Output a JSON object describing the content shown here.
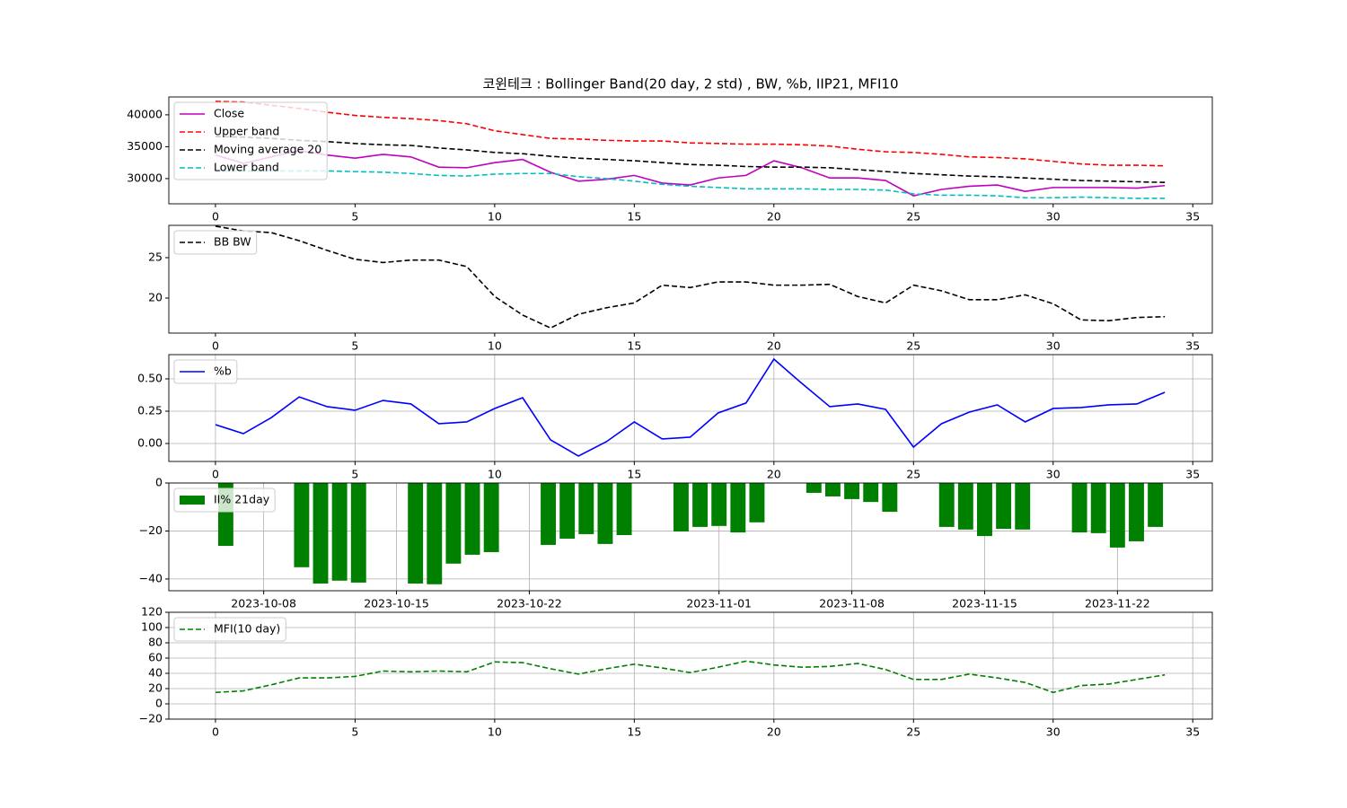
{
  "chart_data": [
    {
      "type": "line",
      "title": "코윈테크 : Bollinger Band(20 day, 2 std) , BW, %b, IIP21, MFI10",
      "x": [
        0,
        1,
        2,
        3,
        4,
        5,
        6,
        7,
        8,
        9,
        10,
        11,
        12,
        13,
        14,
        15,
        16,
        17,
        18,
        19,
        20,
        21,
        22,
        23,
        24,
        25,
        26,
        27,
        28,
        29,
        30,
        31,
        32,
        33,
        34
      ],
      "series": [
        {
          "name": "Close",
          "color": "#bf00bf",
          "linestyle": "solid",
          "values": [
            33700,
            32400,
            33400,
            34400,
            33700,
            33200,
            33800,
            33400,
            31800,
            31700,
            32500,
            33000,
            31000,
            29600,
            29900,
            30500,
            29300,
            29000,
            30100,
            30500,
            32800,
            31700,
            30100,
            30100,
            29700,
            27300,
            28300,
            28800,
            29000,
            28000,
            28600,
            28600,
            28600,
            28500,
            28900
          ]
        },
        {
          "name": "Upper band",
          "color": "#ff0000",
          "linestyle": "dashed",
          "values": [
            42100,
            42000,
            41500,
            41000,
            40400,
            39900,
            39600,
            39400,
            39100,
            38600,
            37500,
            36900,
            36300,
            36200,
            36000,
            35900,
            35900,
            35600,
            35500,
            35400,
            35400,
            35300,
            35100,
            34600,
            34200,
            34100,
            33800,
            33400,
            33300,
            33100,
            32700,
            32300,
            32100,
            32100,
            32000
          ]
        },
        {
          "name": "Moving average 20",
          "color": "#000000",
          "linestyle": "dashed",
          "values": [
            36600,
            36500,
            36300,
            36000,
            35800,
            35500,
            35300,
            35200,
            34800,
            34500,
            34100,
            33900,
            33500,
            33200,
            33000,
            32800,
            32500,
            32200,
            32100,
            31900,
            31800,
            31800,
            31700,
            31400,
            31100,
            30800,
            30600,
            30400,
            30300,
            30100,
            29900,
            29700,
            29600,
            29500,
            29400
          ]
        },
        {
          "name": "Lower band",
          "color": "#00bfbf",
          "linestyle": "dashed",
          "values": [
            31200,
            31200,
            31200,
            31200,
            31200,
            31100,
            31000,
            30800,
            30500,
            30400,
            30700,
            30800,
            30800,
            30300,
            30000,
            29600,
            29100,
            28800,
            28600,
            28400,
            28400,
            28400,
            28300,
            28300,
            28200,
            27600,
            27400,
            27400,
            27300,
            27000,
            27000,
            27100,
            27000,
            26900,
            26900
          ]
        }
      ],
      "xlim": [
        -1.67,
        35.7
      ],
      "xticks": [
        0,
        5,
        10,
        15,
        20,
        25,
        30,
        35
      ],
      "ylim": [
        26050,
        42800
      ],
      "yticks": [
        30000,
        35000,
        40000
      ],
      "grid": false,
      "legend": "upper left"
    },
    {
      "type": "line",
      "x": [
        0,
        1,
        2,
        3,
        4,
        5,
        6,
        7,
        8,
        9,
        10,
        11,
        12,
        13,
        14,
        15,
        16,
        17,
        18,
        19,
        20,
        21,
        22,
        23,
        24,
        25,
        26,
        27,
        28,
        29,
        30,
        31,
        32,
        33,
        34
      ],
      "series": [
        {
          "name": "BB BW",
          "color": "#000000",
          "linestyle": "dashed",
          "values": [
            28.9,
            28.3,
            28.1,
            27.1,
            25.9,
            24.8,
            24.4,
            24.7,
            24.7,
            23.9,
            20.2,
            17.9,
            16.3,
            18.0,
            18.8,
            19.4,
            21.6,
            21.3,
            22.0,
            22.0,
            21.6,
            21.6,
            21.7,
            20.2,
            19.4,
            21.6,
            20.9,
            19.8,
            19.8,
            20.4,
            19.3,
            17.3,
            17.2,
            17.6,
            17.7
          ]
        }
      ],
      "xlim": [
        -1.67,
        35.7
      ],
      "xticks": [
        0,
        5,
        10,
        15,
        20,
        25,
        30,
        35
      ],
      "ylim": [
        15.67,
        29
      ],
      "yticks": [
        20,
        25
      ],
      "grid": false,
      "legend": "upper left"
    },
    {
      "type": "line",
      "x": [
        0,
        1,
        2,
        3,
        4,
        5,
        6,
        7,
        8,
        9,
        10,
        11,
        12,
        13,
        14,
        15,
        16,
        17,
        18,
        19,
        20,
        21,
        22,
        23,
        24,
        25,
        26,
        27,
        28,
        29,
        30,
        31,
        32,
        33,
        34
      ],
      "series": [
        {
          "name": "%b",
          "color": "#0000ff",
          "linestyle": "solid",
          "values": [
            0.146,
            0.076,
            0.2,
            0.36,
            0.285,
            0.257,
            0.333,
            0.306,
            0.153,
            0.167,
            0.271,
            0.354,
            0.028,
            -0.097,
            0.014,
            0.167,
            0.035,
            0.049,
            0.236,
            0.313,
            0.653,
            0.465,
            0.285,
            0.306,
            0.264,
            -0.028,
            0.153,
            0.243,
            0.299,
            0.167,
            0.271,
            0.278,
            0.299,
            0.306,
            0.396
          ]
        }
      ],
      "xlim": [
        -1.67,
        35.7
      ],
      "xticks": [
        0,
        5,
        10,
        15,
        20,
        25,
        30,
        35
      ],
      "ylim": [
        -0.139,
        0.6875
      ],
      "yticks": [
        {
          "value": 0,
          "label": "0.00"
        },
        {
          "value": 0.25,
          "label": "0.25"
        },
        {
          "value": 0.5,
          "label": "0.50"
        }
      ],
      "grid": true,
      "legend": "upper left"
    },
    {
      "type": "bar",
      "x": [
        "2023-10-06",
        "2023-10-10",
        "2023-10-11",
        "2023-10-12",
        "2023-10-13",
        "2023-10-16",
        "2023-10-17",
        "2023-10-18",
        "2023-10-19",
        "2023-10-20",
        "2023-10-23",
        "2023-10-24",
        "2023-10-25",
        "2023-10-26",
        "2023-10-27",
        "2023-10-30",
        "2023-10-31",
        "2023-11-01",
        "2023-11-02",
        "2023-11-03",
        "2023-11-06",
        "2023-11-07",
        "2023-11-08",
        "2023-11-09",
        "2023-11-10",
        "2023-11-13",
        "2023-11-14",
        "2023-11-15",
        "2023-11-16",
        "2023-11-17",
        "2023-11-20",
        "2023-11-21",
        "2023-11-22",
        "2023-11-23",
        "2023-11-24"
      ],
      "series": [
        {
          "name": "II% 21day",
          "color": "#008000",
          "values": [
            -26.2,
            -35.1,
            -41.9,
            -40.7,
            -41.5,
            -41.9,
            -42.2,
            -33.6,
            -29.9,
            -28.8,
            -25.8,
            -23.2,
            -21.3,
            -25.4,
            -21.7,
            -20.2,
            -18.3,
            -17.9,
            -20.6,
            -16.4,
            -4.1,
            -5.6,
            -6.7,
            -7.9,
            -12.0,
            -18.3,
            -19.4,
            -22.1,
            -19.1,
            -19.4,
            -20.6,
            -20.9,
            -26.9,
            -24.3,
            -18.3
          ]
        }
      ],
      "xlim": [
        "2023-10-03",
        "2023-11-27"
      ],
      "xticks": [
        "2023-10-08",
        "2023-10-15",
        "2023-10-22",
        "2023-11-01",
        "2023-11-08",
        "2023-11-15",
        "2023-11-22"
      ],
      "ylim": [
        -44.9,
        0
      ],
      "yticks": [
        0,
        {
          "value": -20,
          "label": "−20"
        },
        {
          "value": -40,
          "label": "−40"
        }
      ],
      "grid": true,
      "legend": "upper left"
    },
    {
      "type": "line",
      "x": [
        0,
        1,
        2,
        3,
        4,
        5,
        6,
        7,
        8,
        9,
        10,
        11,
        12,
        13,
        14,
        15,
        16,
        17,
        18,
        19,
        20,
        21,
        22,
        23,
        24,
        25,
        26,
        27,
        28,
        29,
        30,
        31,
        32,
        33,
        34
      ],
      "series": [
        {
          "name": "MFI(10 day)",
          "color": "#008000",
          "linestyle": "dashed",
          "values": [
            15,
            17,
            25,
            34,
            34,
            36,
            43,
            42,
            43,
            42,
            55,
            54,
            46,
            39,
            46,
            52,
            47,
            41,
            48,
            56,
            51,
            48,
            49,
            53,
            45,
            32,
            32,
            39,
            34,
            28,
            15,
            24,
            26,
            32,
            38
          ]
        }
      ],
      "xlim": [
        -1.67,
        35.7
      ],
      "xticks": [
        0,
        5,
        10,
        15,
        20,
        25,
        30,
        35
      ],
      "ylim": [
        -20,
        120
      ],
      "yticks": [
        {
          "value": -20,
          "label": "−20"
        },
        0,
        20,
        40,
        60,
        80,
        100,
        120
      ],
      "grid": true,
      "legend": "upper left"
    }
  ]
}
